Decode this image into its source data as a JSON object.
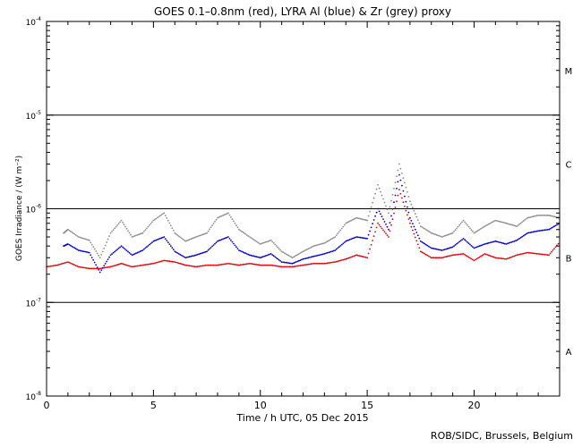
{
  "chart_data": {
    "type": "scatter",
    "title": "GOES 0.1–0.8nm (red), LYRA Al (blue) & Zr (grey) proxy",
    "xlabel": "Time / h UTC, 05 Dec 2015",
    "ylabel": "GOES Irradiance / (W m⁻²)",
    "xlim": [
      0,
      24
    ],
    "ylim": [
      1e-08,
      0.0001
    ],
    "yscale": "log",
    "x_ticks": [
      0,
      5,
      10,
      15,
      20
    ],
    "x_tick_labels": [
      "0",
      "5",
      "10",
      "15",
      "20"
    ],
    "y_ticks": [
      1e-08,
      1e-07,
      1e-06,
      1e-05,
      0.0001
    ],
    "y_tick_labels": [
      {
        "base": "10",
        "exp": "-8"
      },
      {
        "base": "10",
        "exp": "-7"
      },
      {
        "base": "10",
        "exp": "-6"
      },
      {
        "base": "10",
        "exp": "-5"
      },
      {
        "base": "10",
        "exp": "-4"
      }
    ],
    "class_lines": [
      1e-07,
      1e-06,
      1e-05
    ],
    "class_labels": [
      {
        "label": "A",
        "y": 3e-08
      },
      {
        "label": "B",
        "y": 3e-07
      },
      {
        "label": "C",
        "y": 3e-06
      },
      {
        "label": "M",
        "y": 3e-05
      }
    ],
    "grid": false,
    "legend": "none",
    "series": [
      {
        "name": "GOES 0.1–0.8nm",
        "color": "#e8000b",
        "x": [
          0,
          0.5,
          1,
          1.5,
          2,
          2.5,
          3,
          3.5,
          4,
          4.5,
          5,
          5.5,
          6,
          6.5,
          7,
          7.5,
          8,
          8.5,
          9,
          9.5,
          10,
          10.5,
          11,
          11.5,
          12,
          12.5,
          13,
          13.5,
          14,
          14.5,
          15,
          15.5,
          16,
          16.5,
          17,
          17.5,
          18,
          18.5,
          19,
          19.5,
          20,
          20.5,
          21,
          21.5,
          22,
          22.5,
          23,
          23.5,
          24
        ],
        "y": [
          2.4e-07,
          2.5e-07,
          2.7e-07,
          2.4e-07,
          2.3e-07,
          2.3e-07,
          2.4e-07,
          2.6e-07,
          2.4e-07,
          2.5e-07,
          2.6e-07,
          2.8e-07,
          2.7e-07,
          2.5e-07,
          2.4e-07,
          2.5e-07,
          2.5e-07,
          2.6e-07,
          2.5e-07,
          2.6e-07,
          2.5e-07,
          2.5e-07,
          2.4e-07,
          2.4e-07,
          2.5e-07,
          2.6e-07,
          2.6e-07,
          2.7e-07,
          2.9e-07,
          3.2e-07,
          3e-07,
          7e-07,
          5e-07,
          1.6e-06,
          7e-07,
          3.5e-07,
          3e-07,
          3e-07,
          3.2e-07,
          3.3e-07,
          2.8e-07,
          3.3e-07,
          3e-07,
          2.9e-07,
          3.2e-07,
          3.4e-07,
          3.3e-07,
          3.2e-07,
          4.4e-07
        ]
      },
      {
        "name": "LYRA Al proxy",
        "color": "#0000d4",
        "x": [
          0.8,
          1,
          1.5,
          2,
          2.5,
          3,
          3.5,
          4,
          4.5,
          5,
          5.5,
          6,
          6.5,
          7,
          7.5,
          8,
          8.5,
          9,
          9.5,
          10,
          10.5,
          11,
          11.5,
          12,
          12.5,
          13,
          13.5,
          14,
          14.5,
          15,
          15.5,
          16,
          16.5,
          17,
          17.5,
          18,
          18.5,
          19,
          19.5,
          20,
          20.5,
          21,
          21.5,
          22,
          22.5,
          23,
          23.5,
          24
        ],
        "y": [
          4e-07,
          4.2e-07,
          3.6e-07,
          3.4e-07,
          2.1e-07,
          3.2e-07,
          4e-07,
          3.2e-07,
          3.6e-07,
          4.5e-07,
          5e-07,
          3.5e-07,
          3e-07,
          3.2e-07,
          3.5e-07,
          4.5e-07,
          5e-07,
          3.6e-07,
          3.2e-07,
          3e-07,
          3.3e-07,
          2.7e-07,
          2.6e-07,
          2.9e-07,
          3.1e-07,
          3.3e-07,
          3.6e-07,
          4.5e-07,
          5e-07,
          4.8e-07,
          1e-06,
          6e-07,
          2.3e-06,
          8e-07,
          4.5e-07,
          3.8e-07,
          3.6e-07,
          3.9e-07,
          4.8e-07,
          3.8e-07,
          4.2e-07,
          4.5e-07,
          4.2e-07,
          4.6e-07,
          5.5e-07,
          5.8e-07,
          6e-07,
          7e-07
        ]
      },
      {
        "name": "LYRA Zr proxy",
        "color": "#8c8c8c",
        "x": [
          0.8,
          1,
          1.5,
          2,
          2.5,
          3,
          3.5,
          4,
          4.5,
          5,
          5.5,
          6,
          6.5,
          7,
          7.5,
          8,
          8.5,
          9,
          9.5,
          10,
          10.5,
          11,
          11.5,
          12,
          12.5,
          13,
          13.5,
          14,
          14.5,
          15,
          15.5,
          16,
          16.5,
          17,
          17.5,
          18,
          18.5,
          19,
          19.5,
          20,
          20.5,
          21,
          21.5,
          22,
          22.5,
          23,
          23.5,
          24
        ],
        "y": [
          5.5e-07,
          6e-07,
          5e-07,
          4.6e-07,
          3e-07,
          5.5e-07,
          7.5e-07,
          5e-07,
          5.5e-07,
          7.5e-07,
          9e-07,
          5.5e-07,
          4.5e-07,
          5e-07,
          5.5e-07,
          8e-07,
          9e-07,
          6e-07,
          5e-07,
          4.2e-07,
          4.6e-07,
          3.5e-07,
          3e-07,
          3.5e-07,
          4e-07,
          4.3e-07,
          5e-07,
          7e-07,
          8e-07,
          7.5e-07,
          1.8e-06,
          9e-07,
          3e-06,
          1.2e-06,
          6.5e-07,
          5.5e-07,
          5e-07,
          5.5e-07,
          7.5e-07,
          5.5e-07,
          6.5e-07,
          7.5e-07,
          7e-07,
          6.5e-07,
          8e-07,
          8.5e-07,
          8.5e-07,
          8e-07
        ]
      }
    ]
  },
  "footer": {
    "credit": "ROB/SIDC, Brussels, Belgium"
  }
}
